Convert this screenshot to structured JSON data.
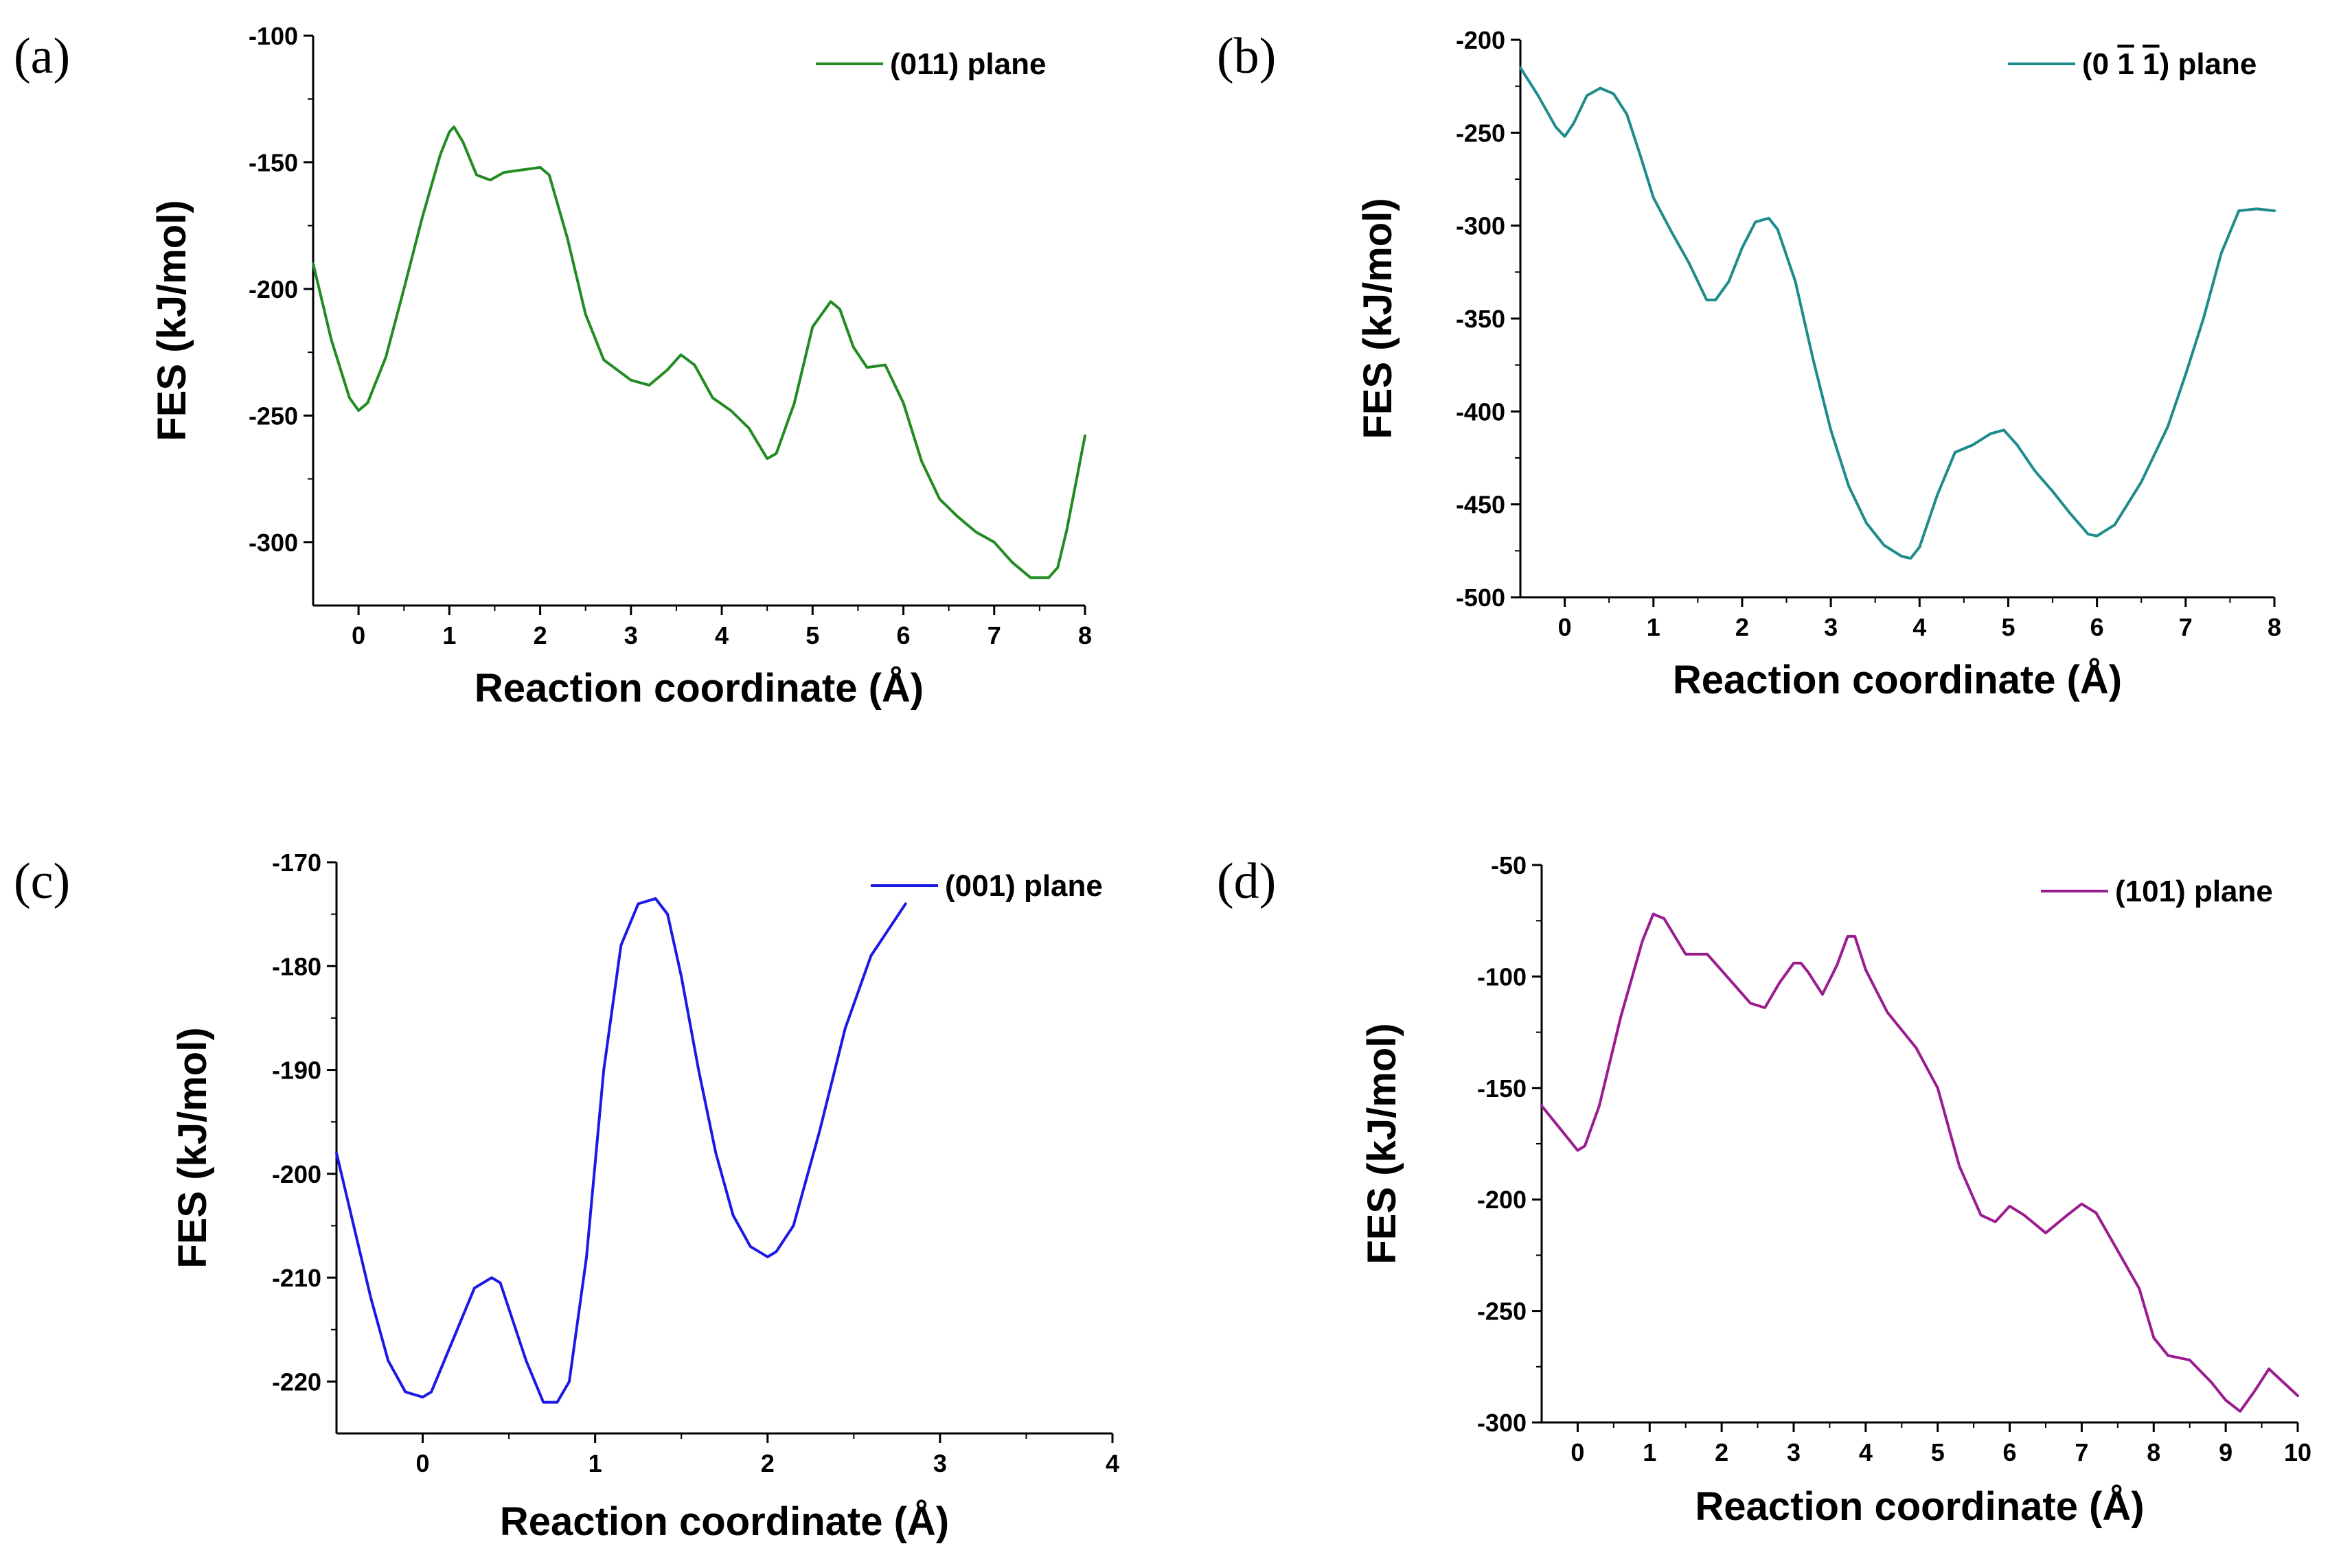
{
  "panels": [
    {
      "letter": "(a)"
    },
    {
      "letter": "(b)"
    },
    {
      "letter": "(c)"
    },
    {
      "letter": "(d)"
    }
  ],
  "chart_data": [
    {
      "type": "line",
      "xlabel": "Reaction coordinate (Å)",
      "ylabel": "FES (kJ/mol)",
      "xlim": [
        -0.5,
        8
      ],
      "ylim": [
        -325,
        -100
      ],
      "xticks": [
        0,
        1,
        2,
        3,
        4,
        5,
        6,
        7,
        8
      ],
      "yticks": [
        -100,
        -150,
        -200,
        -250,
        -300
      ],
      "color": "#228B22",
      "legend_position": "top-right",
      "series": [
        {
          "name": "(011) plane",
          "x": [
            -0.5,
            -0.3,
            -0.1,
            0.0,
            0.1,
            0.3,
            0.5,
            0.7,
            0.9,
            1.0,
            1.05,
            1.15,
            1.3,
            1.45,
            1.6,
            1.8,
            2.0,
            2.1,
            2.3,
            2.5,
            2.7,
            3.0,
            3.2,
            3.4,
            3.55,
            3.7,
            3.9,
            4.1,
            4.3,
            4.5,
            4.6,
            4.8,
            5.0,
            5.2,
            5.3,
            5.45,
            5.6,
            5.8,
            6.0,
            6.2,
            6.4,
            6.6,
            6.8,
            7.0,
            7.2,
            7.4,
            7.6,
            7.7,
            7.8,
            8.0
          ],
          "y": [
            -190,
            -220,
            -243,
            -248,
            -245,
            -227,
            -200,
            -172,
            -147,
            -138,
            -136,
            -142,
            -155,
            -157,
            -154,
            -153,
            -152,
            -155,
            -180,
            -210,
            -228,
            -236,
            -238,
            -232,
            -226,
            -230,
            -243,
            -248,
            -255,
            -267,
            -265,
            -245,
            -215,
            -205,
            -208,
            -223,
            -231,
            -230,
            -245,
            -268,
            -283,
            -290,
            -296,
            -300,
            -308,
            -314,
            -314,
            -310,
            -295,
            -258
          ]
        }
      ]
    },
    {
      "type": "line",
      "xlabel": "Reaction coordinate (Å)",
      "ylabel": "FES (kJ/mol)",
      "xlim": [
        -0.5,
        8
      ],
      "ylim": [
        -500,
        -200
      ],
      "xticks": [
        0,
        1,
        2,
        3,
        4,
        5,
        6,
        7,
        8
      ],
      "yticks": [
        -200,
        -250,
        -300,
        -350,
        -400,
        -450,
        -500
      ],
      "color": "#1E8C8C",
      "legend_position": "top-right",
      "legend_prefix": "(0",
      "legend_bar1": "1",
      "legend_bar2": "1",
      "legend_suffix": ") plane",
      "series": [
        {
          "x": [
            -0.5,
            -0.3,
            -0.1,
            0.0,
            0.1,
            0.25,
            0.4,
            0.55,
            0.7,
            0.85,
            1.0,
            1.2,
            1.4,
            1.6,
            1.7,
            1.85,
            2.0,
            2.15,
            2.3,
            2.4,
            2.6,
            2.8,
            3.0,
            3.2,
            3.4,
            3.6,
            3.8,
            3.9,
            4.0,
            4.2,
            4.4,
            4.6,
            4.8,
            4.95,
            5.1,
            5.3,
            5.5,
            5.7,
            5.9,
            6.0,
            6.2,
            6.5,
            6.8,
            7.0,
            7.2,
            7.4,
            7.6,
            7.8,
            8.0
          ],
          "y": [
            -215,
            -230,
            -247,
            -252,
            -245,
            -230,
            -226,
            -229,
            -240,
            -262,
            -285,
            -303,
            -320,
            -340,
            -340,
            -330,
            -312,
            -298,
            -296,
            -302,
            -330,
            -372,
            -410,
            -440,
            -460,
            -472,
            -478,
            -479,
            -473,
            -445,
            -422,
            -418,
            -412,
            -410,
            -418,
            -432,
            -443,
            -455,
            -466,
            -467,
            -461,
            -438,
            -408,
            -380,
            -350,
            -315,
            -292,
            -291,
            -292
          ]
        }
      ]
    },
    {
      "type": "line",
      "xlabel": "Reaction coordinate (Å)",
      "ylabel": "FES (kJ/mol)",
      "xlim": [
        -0.5,
        4
      ],
      "ylim": [
        -225,
        -170
      ],
      "xticks": [
        0,
        1,
        2,
        3,
        4
      ],
      "yticks": [
        -170,
        -180,
        -190,
        -200,
        -210,
        -220
      ],
      "color": "#1A1AE6",
      "legend_position": "top-right",
      "series": [
        {
          "name": "(001) plane",
          "x": [
            -0.5,
            -0.4,
            -0.3,
            -0.2,
            -0.1,
            0.0,
            0.05,
            0.1,
            0.2,
            0.3,
            0.4,
            0.45,
            0.5,
            0.6,
            0.7,
            0.78,
            0.85,
            0.95,
            1.05,
            1.15,
            1.25,
            1.35,
            1.42,
            1.5,
            1.6,
            1.7,
            1.8,
            1.9,
            2.0,
            2.05,
            2.15,
            2.3,
            2.45,
            2.6,
            2.7,
            2.8
          ],
          "y": [
            -198,
            -205,
            -212,
            -218,
            -221,
            -221.5,
            -221,
            -219,
            -215,
            -211,
            -210,
            -210.5,
            -213,
            -218,
            -222,
            -222,
            -220,
            -208,
            -190,
            -178,
            -174,
            -173.5,
            -175,
            -181,
            -190,
            -198,
            -204,
            -207,
            -208,
            -207.5,
            -205,
            -196,
            -186,
            -179,
            -176.5,
            -174
          ]
        }
      ]
    },
    {
      "type": "line",
      "xlabel": "Reaction coordinate (Å)",
      "ylabel": "FES (kJ/mol)",
      "xlim": [
        -0.5,
        10
      ],
      "ylim": [
        -300,
        -50
      ],
      "xticks": [
        0,
        1,
        2,
        3,
        4,
        5,
        6,
        7,
        8,
        9,
        10
      ],
      "yticks": [
        -50,
        -100,
        -150,
        -200,
        -250,
        -300
      ],
      "color": "#9B1C8E",
      "legend_position": "top-right",
      "series": [
        {
          "name": "(101) plane",
          "x": [
            -0.5,
            -0.2,
            0.0,
            0.1,
            0.3,
            0.6,
            0.9,
            1.05,
            1.2,
            1.5,
            1.8,
            2.1,
            2.4,
            2.6,
            2.8,
            3.0,
            3.1,
            3.2,
            3.4,
            3.6,
            3.75,
            3.85,
            4.0,
            4.3,
            4.7,
            5.0,
            5.3,
            5.6,
            5.8,
            6.0,
            6.2,
            6.5,
            6.8,
            7.0,
            7.2,
            7.5,
            7.8,
            8.0,
            8.2,
            8.5,
            8.8,
            9.0,
            9.2,
            9.4,
            9.6,
            9.8,
            10.0
          ],
          "y": [
            -158,
            -170,
            -178,
            -176,
            -158,
            -118,
            -84,
            -72,
            -74,
            -90,
            -90,
            -101,
            -112,
            -114,
            -103,
            -94,
            -94,
            -98,
            -108,
            -95,
            -82,
            -82,
            -97,
            -116,
            -132,
            -150,
            -185,
            -207,
            -210,
            -203,
            -207,
            -215,
            -207,
            -202,
            -206,
            -223,
            -240,
            -262,
            -270,
            -272,
            -282,
            -290,
            -295,
            -286,
            -276,
            -282,
            -288
          ]
        }
      ]
    }
  ]
}
